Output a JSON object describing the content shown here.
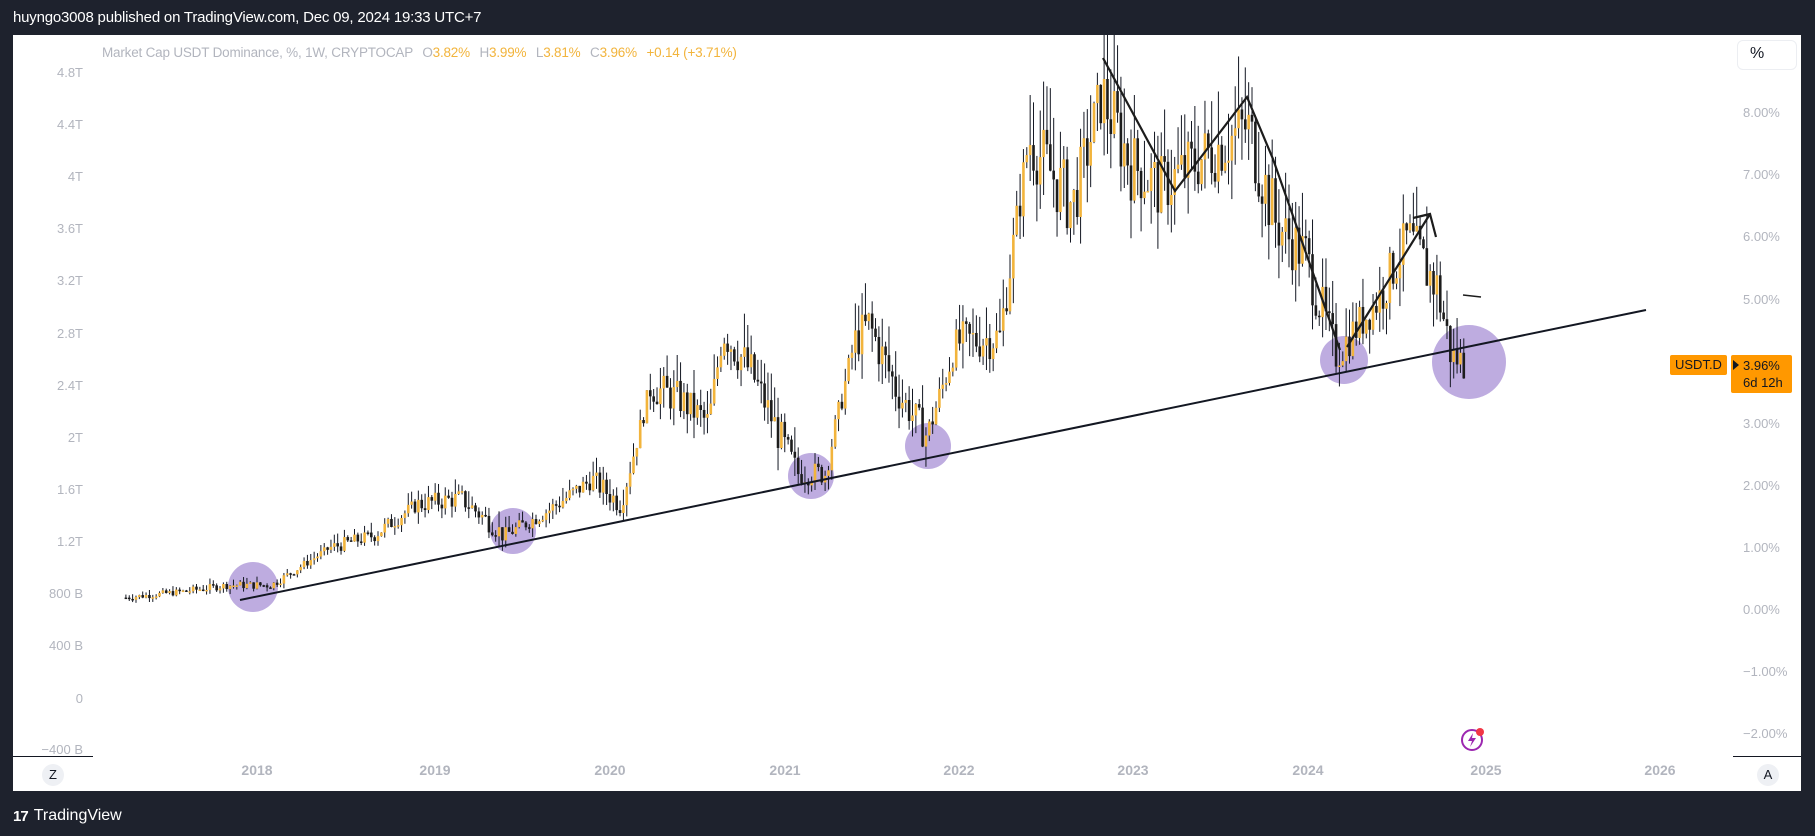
{
  "header": {
    "publisher_line": "huyngo3008 published on TradingView.com, Dec 09, 2024 19:33 UTC+7"
  },
  "legend": {
    "title": "Market Cap USDT Dominance, %, 1W, CRYPTOCAP",
    "open_label": "O",
    "open": "3.82%",
    "high_label": "H",
    "high": "3.99%",
    "low_label": "L",
    "low": "3.81%",
    "close_label": "C",
    "close": "3.96%",
    "change": "+0.14 (+3.71%)"
  },
  "scale_button": "%",
  "left_axis": [
    "4.8T",
    "4.4T",
    "4T",
    "3.6T",
    "3.2T",
    "2.8T",
    "2.4T",
    "2T",
    "1.6T",
    "1.2T",
    "800 B",
    "400 B",
    "0",
    "−400 B"
  ],
  "right_axis": [
    "8.00%",
    "7.00%",
    "6.00%",
    "5.00%",
    "3.00%",
    "2.00%",
    "1.00%",
    "0.00%",
    "−1.00%",
    "−2.00%"
  ],
  "time_axis": [
    "2018",
    "2019",
    "2020",
    "2021",
    "2022",
    "2023",
    "2024",
    "2025",
    "2026"
  ],
  "symbol_label": "USDT.D",
  "last_price": "3.96%",
  "countdown": "6d 12h",
  "zoom_button": "Z",
  "auto_button": "A",
  "footer": {
    "brand": "TradingView",
    "logo_glyph": "17"
  },
  "colors": {
    "up": "#f2b43c",
    "down": "#1c1c1c",
    "circle": "#b39ddb",
    "label": "#ff9800",
    "background": "#1e222d"
  },
  "chart_data": {
    "type": "candlestick",
    "title": "Market Cap USDT Dominance, %, 1W, CRYPTOCAP",
    "symbol": "USDT.D",
    "timeframe": "1W",
    "xlabel": "",
    "ylabel": "%",
    "ylim_right": [
      -2.3,
      9.3
    ],
    "ylim_left": [
      "-400 B",
      "4.8T"
    ],
    "x_ticks": [
      "2018",
      "2019",
      "2020",
      "2021",
      "2022",
      "2023",
      "2024",
      "2025",
      "2026"
    ],
    "y_ticks_right": [
      8,
      7,
      6,
      5,
      3,
      2,
      1,
      0,
      -1,
      -2
    ],
    "last": {
      "open": 3.82,
      "high": 3.99,
      "low": 3.81,
      "close": 3.96,
      "change": 0.14,
      "change_pct": 3.71
    },
    "approx_close_path": [
      {
        "t": "2017-04",
        "v": 0.2
      },
      {
        "t": "2017-08",
        "v": 0.3
      },
      {
        "t": "2017-11",
        "v": 0.4
      },
      {
        "t": "2018-02",
        "v": 0.4
      },
      {
        "t": "2018-06",
        "v": 1.0
      },
      {
        "t": "2018-09",
        "v": 1.2
      },
      {
        "t": "2018-12",
        "v": 1.7
      },
      {
        "t": "2019-03",
        "v": 1.8
      },
      {
        "t": "2019-06",
        "v": 1.2
      },
      {
        "t": "2019-09",
        "v": 1.6
      },
      {
        "t": "2019-12",
        "v": 2.1
      },
      {
        "t": "2020-02",
        "v": 1.7
      },
      {
        "t": "2020-04",
        "v": 3.6
      },
      {
        "t": "2020-06",
        "v": 3.4
      },
      {
        "t": "2020-08",
        "v": 3.0
      },
      {
        "t": "2020-09",
        "v": 4.5
      },
      {
        "t": "2020-11",
        "v": 3.8
      },
      {
        "t": "2021-02",
        "v": 2.2
      },
      {
        "t": "2021-04",
        "v": 2.2
      },
      {
        "t": "2021-06",
        "v": 4.3
      },
      {
        "t": "2021-07",
        "v": 4.6
      },
      {
        "t": "2021-09",
        "v": 3.5
      },
      {
        "t": "2021-11",
        "v": 2.8
      },
      {
        "t": "2022-01",
        "v": 4.3
      },
      {
        "t": "2022-04",
        "v": 4.4
      },
      {
        "t": "2022-06",
        "v": 7.6
      },
      {
        "t": "2022-09",
        "v": 6.5
      },
      {
        "t": "2022-11",
        "v": 8.3
      },
      {
        "t": "2023-01",
        "v": 7.2
      },
      {
        "t": "2023-03",
        "v": 6.8
      },
      {
        "t": "2023-06",
        "v": 7.3
      },
      {
        "t": "2023-09",
        "v": 7.8
      },
      {
        "t": "2023-11",
        "v": 6.2
      },
      {
        "t": "2024-01",
        "v": 5.7
      },
      {
        "t": "2024-03",
        "v": 4.1
      },
      {
        "t": "2024-06",
        "v": 5.0
      },
      {
        "t": "2024-08",
        "v": 6.0
      },
      {
        "t": "2024-10",
        "v": 5.2
      },
      {
        "t": "2024-11",
        "v": 4.1
      },
      {
        "t": "2024-12",
        "v": 3.96
      }
    ],
    "annotations": {
      "trendline": {
        "from": {
          "t": "2017-12",
          "v": 0.2
        },
        "to": {
          "t": "2025-12",
          "v": 4.9
        }
      },
      "circles_at": [
        "2017-12",
        "2019-07",
        "2021-03",
        "2021-10",
        "2024-03",
        "2024-11"
      ],
      "zigzag_1": [
        "2022-11",
        "2023-04",
        "2023-09",
        "2023-11",
        "2024-03"
      ],
      "zigzag_2": [
        "2024-03",
        "2024-09"
      ]
    }
  }
}
